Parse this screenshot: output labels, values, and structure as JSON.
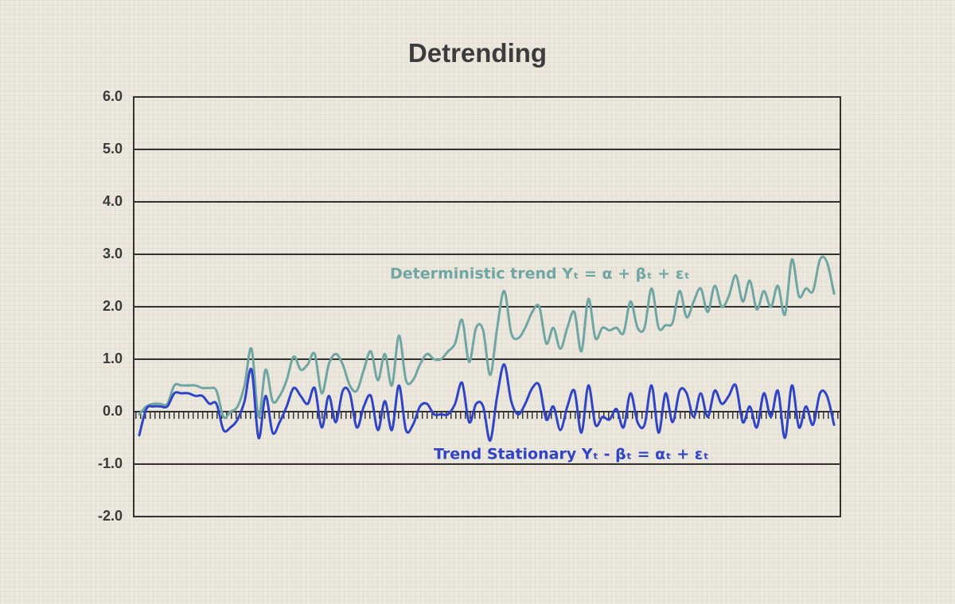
{
  "chart_data": {
    "type": "line",
    "title": "Detrending",
    "ylim": [
      -2,
      6
    ],
    "yticks": [
      {
        "value": -2,
        "label": "-2.0"
      },
      {
        "value": -1,
        "label": "-1.0"
      },
      {
        "value": 0,
        "label": "0.0"
      },
      {
        "value": 1,
        "label": "1.0"
      },
      {
        "value": 2,
        "label": "2.0"
      },
      {
        "value": 3,
        "label": "3.0"
      },
      {
        "value": 4,
        "label": "4.0"
      },
      {
        "value": 5,
        "label": "5.0"
      },
      {
        "value": 6,
        "label": "6.0"
      }
    ],
    "grid": true,
    "series": [
      {
        "name": "Deterministic trend Yₜ = α + βₜ + εₜ",
        "color": "#6fa6a4",
        "values": [
          -0.05,
          0.1,
          0.15,
          0.15,
          0.15,
          0.5,
          0.5,
          0.5,
          0.5,
          0.45,
          0.45,
          0.4,
          -0.1,
          0.0,
          0.1,
          0.5,
          1.2,
          -0.1,
          0.8,
          0.2,
          0.3,
          0.6,
          1.05,
          0.8,
          0.9,
          1.1,
          0.35,
          0.9,
          1.1,
          0.9,
          0.5,
          0.4,
          0.8,
          1.15,
          0.6,
          1.1,
          0.5,
          1.45,
          0.6,
          0.6,
          0.9,
          1.1,
          1.0,
          1.0,
          1.15,
          1.3,
          1.75,
          0.95,
          1.6,
          1.55,
          0.7,
          1.6,
          2.3,
          1.5,
          1.4,
          1.6,
          1.9,
          2.0,
          1.3,
          1.6,
          1.2,
          1.6,
          1.9,
          1.15,
          2.15,
          1.4,
          1.6,
          1.55,
          1.6,
          1.5,
          2.1,
          1.6,
          1.6,
          2.35,
          1.6,
          1.65,
          1.7,
          2.3,
          1.8,
          2.1,
          2.35,
          1.9,
          2.4,
          2.0,
          2.2,
          2.6,
          2.1,
          2.5,
          1.95,
          2.3,
          2.0,
          2.4,
          1.85,
          2.9,
          2.2,
          2.35,
          2.3,
          2.9,
          2.85,
          2.25
        ]
      },
      {
        "name": "Trend Stationary Yₜ - βₜ = αₜ + εₜ",
        "color": "#2f44c6",
        "values": [
          -0.45,
          0.05,
          0.1,
          0.1,
          0.1,
          0.35,
          0.35,
          0.35,
          0.3,
          0.3,
          0.15,
          0.15,
          -0.35,
          -0.3,
          -0.15,
          0.2,
          0.8,
          -0.5,
          0.3,
          -0.4,
          -0.2,
          0.1,
          0.45,
          0.3,
          0.15,
          0.45,
          -0.3,
          0.3,
          -0.2,
          0.4,
          0.35,
          -0.3,
          0.1,
          0.3,
          -0.35,
          0.2,
          -0.35,
          0.5,
          -0.35,
          -0.25,
          0.1,
          0.15,
          -0.05,
          -0.05,
          -0.05,
          0.15,
          0.55,
          -0.2,
          0.15,
          0.1,
          -0.55,
          0.3,
          0.9,
          0.2,
          -0.05,
          0.15,
          0.45,
          0.5,
          -0.15,
          0.1,
          -0.35,
          0.1,
          0.4,
          -0.4,
          0.5,
          -0.25,
          -0.1,
          -0.15,
          0.05,
          -0.3,
          0.35,
          -0.2,
          -0.25,
          0.5,
          -0.4,
          0.35,
          -0.2,
          0.4,
          0.35,
          -0.1,
          0.35,
          -0.1,
          0.4,
          0.15,
          0.3,
          0.5,
          -0.2,
          0.1,
          -0.3,
          0.35,
          -0.1,
          0.4,
          -0.5,
          0.5,
          -0.3,
          0.1,
          -0.25,
          0.35,
          0.3,
          -0.25
        ]
      }
    ]
  }
}
